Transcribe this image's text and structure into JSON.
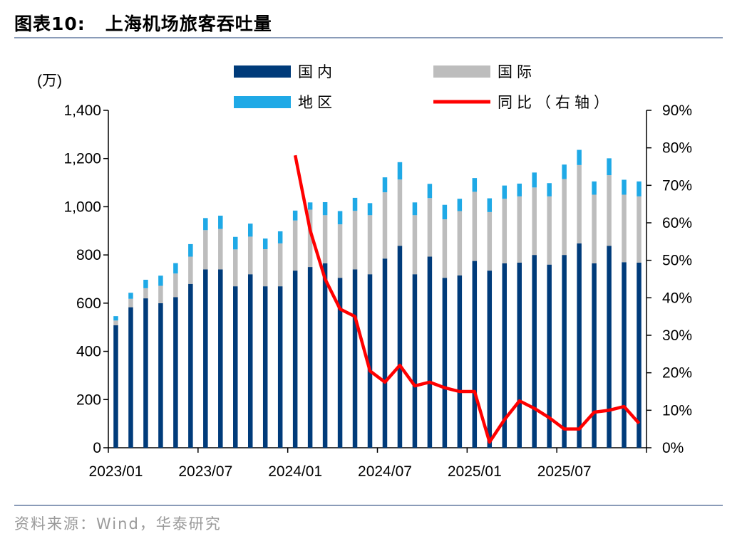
{
  "figure": {
    "label": "图表10:",
    "title": "上海机场旅客吞吐量",
    "source": "资料来源：Wind，华泰研究"
  },
  "chart_data": {
    "type": "bar",
    "stacked": true,
    "unit_label": "(万)",
    "categories": [
      "2023/01",
      "2023/02",
      "2023/03",
      "2023/04",
      "2023/05",
      "2023/06",
      "2023/07",
      "2023/08",
      "2023/09",
      "2023/10",
      "2023/11",
      "2023/12",
      "2024/01",
      "2024/02",
      "2024/03",
      "2024/04",
      "2024/05",
      "2024/06",
      "2024/07",
      "2024/08",
      "2024/09",
      "2024/10",
      "2024/11",
      "2024/12",
      "2025/01",
      "2025/02",
      "2025/03",
      "2025/04",
      "2025/05",
      "2025/06",
      "2025/07",
      "2025/08",
      "2025/09",
      "2025/10",
      "2025/11",
      "2025/12"
    ],
    "x_tick_labels": [
      "2023/01",
      "2023/07",
      "2024/01",
      "2024/07",
      "2025/01",
      "2025/07"
    ],
    "series": [
      {
        "name": "国内",
        "color": "#003b7a",
        "values": [
          508,
          583,
          620,
          600,
          625,
          680,
          740,
          740,
          670,
          720,
          670,
          670,
          735,
          750,
          765,
          705,
          740,
          720,
          785,
          838,
          720,
          793,
          705,
          715,
          775,
          735,
          765,
          768,
          800,
          760,
          800,
          848,
          765,
          838,
          770,
          768
        ]
      },
      {
        "name": "国际",
        "color": "#bdbdbd",
        "values": [
          20,
          35,
          42,
          72,
          98,
          113,
          163,
          168,
          153,
          156,
          154,
          178,
          208,
          238,
          200,
          222,
          243,
          245,
          275,
          275,
          245,
          243,
          243,
          267,
          287,
          243,
          268,
          275,
          280,
          283,
          315,
          325,
          285,
          293,
          280,
          275
        ]
      },
      {
        "name": "地区",
        "color": "#1fa9e6",
        "values": [
          18,
          25,
          35,
          42,
          43,
          52,
          50,
          55,
          52,
          54,
          44,
          50,
          41,
          30,
          54,
          55,
          54,
          50,
          62,
          72,
          53,
          59,
          60,
          51,
          57,
          57,
          55,
          53,
          62,
          55,
          60,
          63,
          55,
          70,
          62,
          62
        ]
      }
    ],
    "line_series": {
      "name": "同比（右轴）",
      "color": "#ff0000",
      "axis": "right",
      "start_index": 12,
      "values": [
        78,
        58,
        45,
        37,
        35,
        20.5,
        17.5,
        22,
        16.5,
        17.5,
        16,
        15,
        15,
        1.5,
        7.5,
        12.5,
        10.5,
        8,
        5,
        5,
        9.5,
        10,
        11,
        6.5
      ]
    },
    "y_left": {
      "min": 0,
      "max": 1400,
      "ticks": [
        0,
        200,
        400,
        600,
        800,
        "1,000",
        "1,200",
        "1,400"
      ]
    },
    "y_right": {
      "min": 0,
      "max": 90,
      "ticks": [
        "0%",
        "10%",
        "20%",
        "30%",
        "40%",
        "50%",
        "60%",
        "70%",
        "80%",
        "90%"
      ]
    },
    "legend_placement": "top"
  }
}
